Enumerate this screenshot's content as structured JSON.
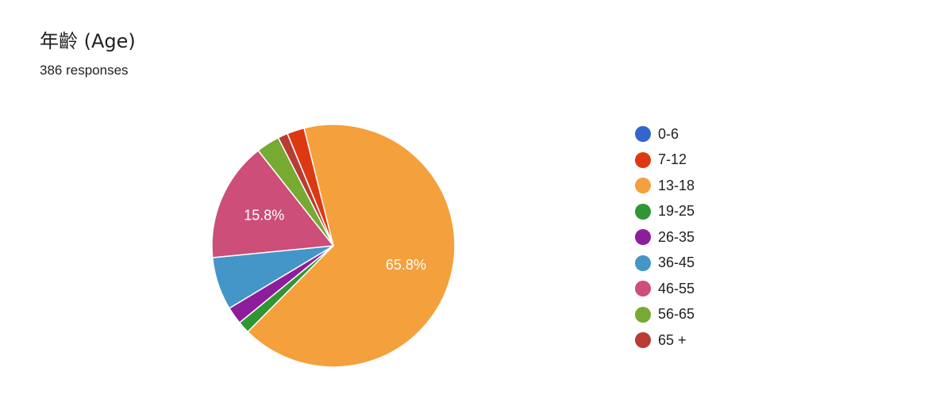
{
  "header": {
    "title": "年齡 (Age)",
    "subtitle": "386 responses"
  },
  "chart_data": {
    "type": "pie",
    "title": "年齡 (Age)",
    "subtitle": "386 responses",
    "legend_position": "right",
    "start_angle_deg": -22.3,
    "categories": [
      "0-6",
      "7-12",
      "13-18",
      "19-25",
      "26-35",
      "36-45",
      "46-55",
      "56-65",
      "65 +"
    ],
    "values": [
      0.0,
      2.3,
      65.8,
      1.6,
      2.3,
      7.0,
      15.8,
      3.1,
      1.3
    ],
    "slice_labels": [
      "",
      "",
      "65.8%",
      "",
      "",
      "",
      "15.8%",
      "",
      ""
    ],
    "colors": [
      "#3366cc",
      "#dc3912",
      "#f4a03c",
      "#2e9733",
      "#8e1d9c",
      "#4495c8",
      "#cc4e79",
      "#76aa32",
      "#b83b34"
    ]
  }
}
